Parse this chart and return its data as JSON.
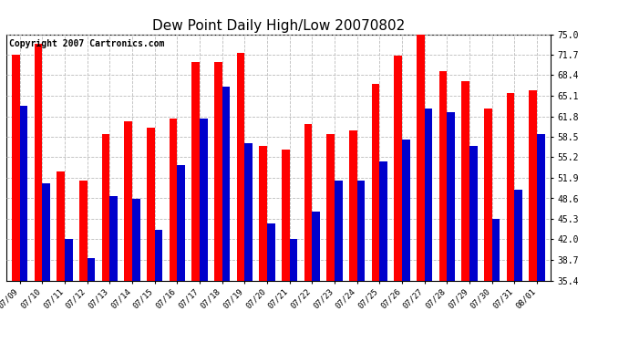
{
  "title": "Dew Point Daily High/Low 20070802",
  "copyright": "Copyright 2007 Cartronics.com",
  "dates": [
    "07/09",
    "07/10",
    "07/11",
    "07/12",
    "07/13",
    "07/14",
    "07/15",
    "07/16",
    "07/17",
    "07/18",
    "07/19",
    "07/20",
    "07/21",
    "07/22",
    "07/23",
    "07/24",
    "07/25",
    "07/26",
    "07/27",
    "07/28",
    "07/29",
    "07/30",
    "07/31",
    "08/01"
  ],
  "highs": [
    71.7,
    73.5,
    53.0,
    51.5,
    59.0,
    61.0,
    60.0,
    61.5,
    70.5,
    70.5,
    72.0,
    57.0,
    56.5,
    60.5,
    59.0,
    59.5,
    67.0,
    71.5,
    76.0,
    69.0,
    67.5,
    63.0,
    65.5,
    66.0
  ],
  "lows": [
    63.5,
    51.0,
    42.0,
    39.0,
    49.0,
    48.5,
    43.5,
    54.0,
    61.5,
    66.5,
    57.5,
    44.5,
    42.0,
    46.5,
    51.5,
    51.5,
    54.5,
    58.0,
    63.0,
    62.5,
    57.0,
    45.3,
    50.0,
    59.0
  ],
  "high_color": "#ff0000",
  "low_color": "#0000cc",
  "background_color": "#ffffff",
  "plot_background": "#ffffff",
  "grid_color": "#bbbbbb",
  "ylim": [
    35.4,
    75.0
  ],
  "yticks": [
    35.4,
    38.7,
    42.0,
    45.3,
    48.6,
    51.9,
    55.2,
    58.5,
    61.8,
    65.1,
    68.4,
    71.7,
    75.0
  ],
  "title_fontsize": 11,
  "copyright_fontsize": 7,
  "bar_width": 0.35
}
